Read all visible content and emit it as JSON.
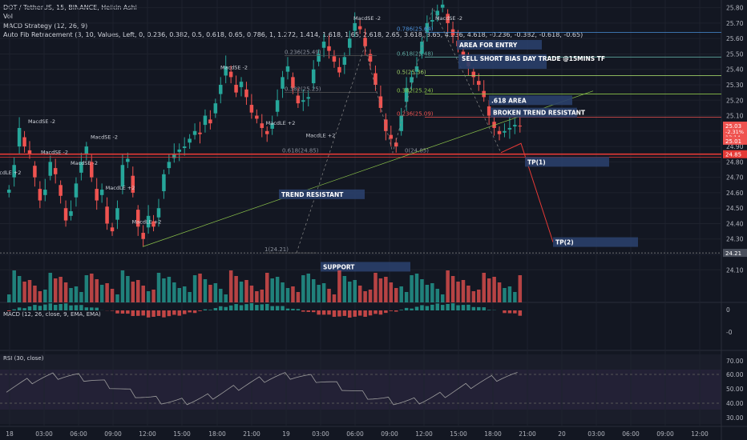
{
  "header": {
    "symbol_line": "DOT / TetherUS, 15, BINANCE, Heikin Ashi",
    "vol": "Vol",
    "macd_strategy": "MACD Strategy (12, 26, 9)",
    "fib_line": "Auto Fib Retracement (3, 10, Values, Left, 0, 0.236, 0.382, 0.5, 0.618, 0.65, 0.786, 1, 1.272, 1.414, 1.618, 1.65, 2.618, 2.65, 3.618, 3.65, 4.236, 4.618, -0.236, -0.382, -0.618, -0.65)"
  },
  "indicators": {
    "macd_label": "MACD (12, 26, close, 9, EMA, EMA)",
    "rsi_label": "RSI (30, close)"
  },
  "colors": {
    "background": "#131722",
    "up": "#26a69a",
    "down": "#ef5350",
    "annotation_box": "#2a3f6a",
    "red_line": "#e53935",
    "grid": "#1e222d"
  },
  "chart_data": {
    "type": "candlestick",
    "price_axis": {
      "ticks": [
        "25.80",
        "25.70",
        "25.60",
        "25.50",
        "25.40",
        "25.30",
        "25.20",
        "25.10",
        "25.00",
        "24.90",
        "24.80",
        "24.70",
        "24.60",
        "24.50",
        "24.40",
        "24.30",
        "24.20",
        "24.10"
      ],
      "range": [
        24.06,
        25.85
      ]
    },
    "price_labels": [
      {
        "value": "25.03",
        "sub": "-2.31%",
        "sub2": "13:14",
        "color": "#ef5350"
      },
      {
        "value": "25.01",
        "color": "#ef5350"
      },
      {
        "value": "24.85",
        "color": "#e53935"
      },
      {
        "value": "24.21",
        "color": "#4a4f5c"
      }
    ],
    "time_axis": [
      "18",
      "03:00",
      "06:00",
      "09:00",
      "12:00",
      "15:00",
      "18:00",
      "21:00",
      "19",
      "03:00",
      "06:00",
      "09:00",
      "12:00",
      "15:00",
      "18:00",
      "21:00",
      "20",
      "03:00",
      "06:00",
      "09:00",
      "12:00"
    ],
    "levels": [
      {
        "label": "0.786(25.64)",
        "price": 25.64,
        "color": "#4a90d9"
      },
      {
        "label": "0.618(25.48)",
        "price": 25.48,
        "color": "#5fa8a0"
      },
      {
        "label": "0.5(25.36)",
        "price": 25.36,
        "color": "#9ccc65"
      },
      {
        "label": "0.382(25.24)",
        "price": 25.24,
        "color": "#8bc34a"
      },
      {
        "label": "0.236(25.09)",
        "price": 25.09,
        "color": "#ef5350"
      },
      {
        "label": "0(24.85)",
        "price": 24.85,
        "color": "#888"
      },
      {
        "label": "0.236(25.49)",
        "price": 25.49,
        "color": "#666"
      },
      {
        "label": "0.382(25.25)",
        "price": 25.25,
        "color": "#666"
      },
      {
        "label": "0.618(24.85)",
        "price": 24.85,
        "color": "#666"
      },
      {
        "label": "1(24.21)",
        "price": 24.21,
        "color": "#666"
      }
    ],
    "annotations": [
      {
        "text": "AREA FOR ENTRY",
        "price": 25.56
      },
      {
        "text": "SELL SHORT BIAS DAY TRADE @15MINS TF",
        "price": 25.45
      },
      {
        "text": ".618 AREA",
        "price": 25.2
      },
      {
        "text": "BROKEN TREND RESISTANT",
        "price": 25.12
      },
      {
        "text": "TP(1)",
        "price": 24.8
      },
      {
        "text": "TP(2)",
        "price": 24.28
      },
      {
        "text": "TREND RESISTANT",
        "price": 24.59
      },
      {
        "text": "SUPPORT",
        "price": 24.12
      }
    ],
    "signals": [
      "MacdLE +2",
      "MacdSE -2"
    ],
    "macd_axis": [
      "0",
      "-0"
    ],
    "rsi_axis": [
      "70.00",
      "60.00",
      "50.00",
      "40.00",
      "30.00"
    ]
  }
}
